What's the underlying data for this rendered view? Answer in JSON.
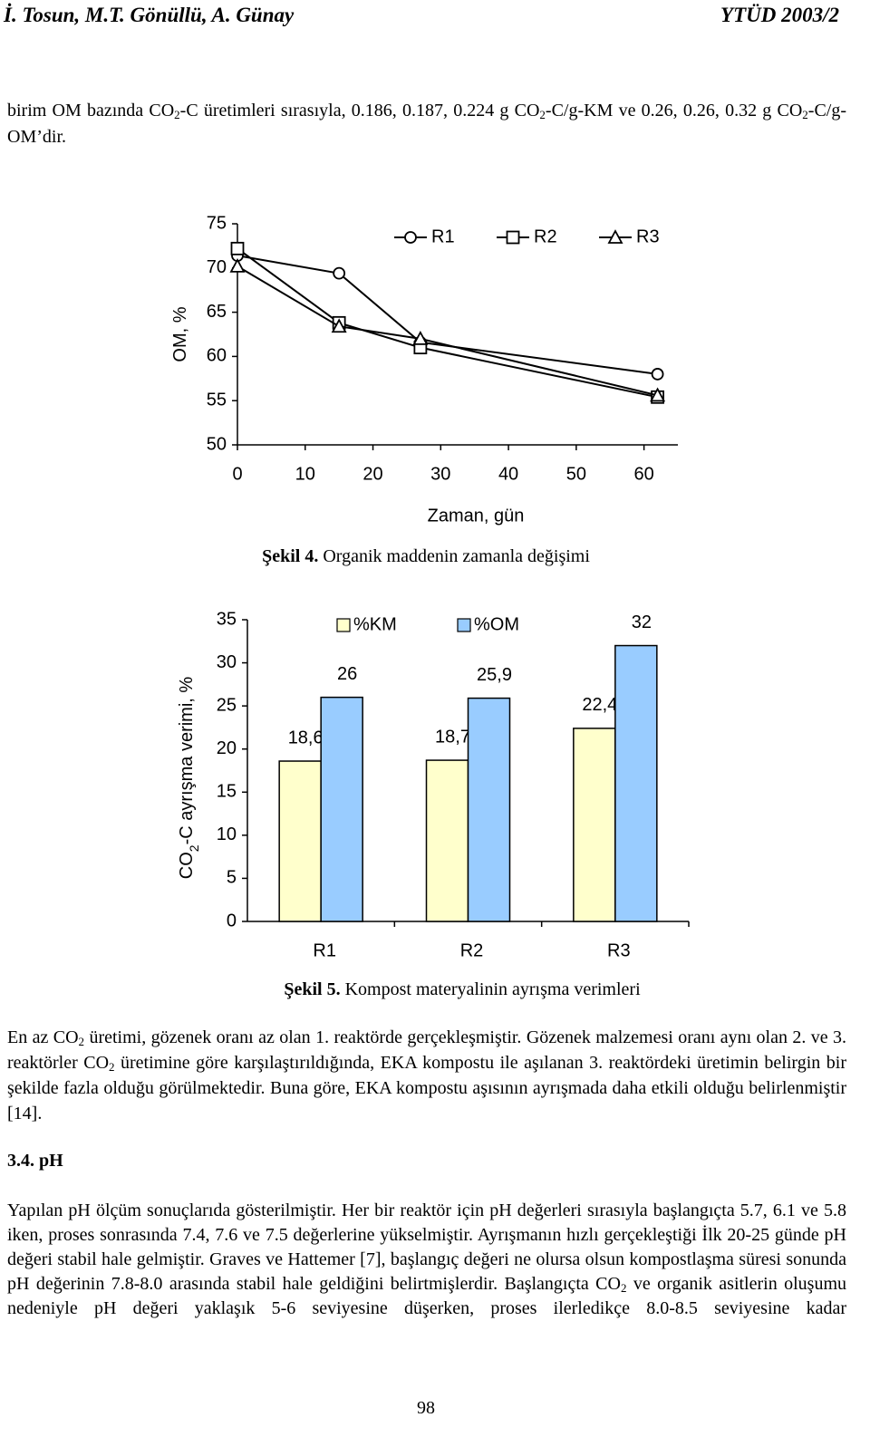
{
  "header": {
    "authors": "İ. Tosun, M.T. Gönüllü, A. Günay",
    "journal": "YTÜD 2003/2"
  },
  "paragraphs": [
    [
      {
        "text": "birim OM bazında CO"
      },
      {
        "text": "2",
        "sub": true
      },
      {
        "text": "-C üretimleri sırasıyla, 0.186, 0.187, 0.224 g CO"
      },
      {
        "text": "2",
        "sub": true
      },
      {
        "text": "-C/g-KM ve 0.26, 0.26, 0.32 g CO"
      },
      {
        "text": "2",
        "sub": true
      },
      {
        "text": "-C/g-OM’dir."
      }
    ],
    [
      {
        "text": "En az CO"
      },
      {
        "text": "2",
        "sub": true
      },
      {
        "text": " üretimi, gözenek oranı az olan 1. reaktörde gerçekleşmiştir. Gözenek malzemesi oranı aynı olan 2. ve 3. reaktörler CO"
      },
      {
        "text": "2",
        "sub": true
      },
      {
        "text": " üretimine göre karşılaştırıldığında, EKA kompostu ile aşılanan 3. reaktördeki üretimin belirgin bir şekilde fazla olduğu görülmektedir. Buna göre, EKA kompostu aşısının ayrışmada daha etkili olduğu belirlenmiştir [14]."
      }
    ],
    [
      {
        "text": "Yapılan pH ölçüm sonuçlarıda gösterilmiştir. Her bir reaktör için pH değerleri sırasıyla başlangıçta 5.7, 6.1 ve 5.8 iken, proses sonrasında 7.4, 7.6 ve 7.5 değerlerine yükselmiştir. Ayrışmanın hızlı gerçekleştiği İlk 20-25 günde pH değeri stabil hale gelmiştir. Graves ve Hattemer [7], başlangıç değeri ne olursa olsun kompostlaşma süresi sonunda pH değerinin 7.8-8.0 arasında stabil hale geldiğini belirtmişlerdir. Başlangıçta CO"
      },
      {
        "text": "2",
        "sub": true
      },
      {
        "text": " ve organik asitlerin oluşumu nedeniyle pH değeri yaklaşık 5-6 seviyesine düşerken, proses ilerledikçe 8.0-8.5 seviyesine kadar"
      }
    ]
  ],
  "section_heading": "3.4. pH",
  "page_number": "98",
  "chart_data": [
    {
      "type": "line",
      "caption": {
        "label": "Şekil 4.",
        "text": "Organik maddenin zamanla değişimi"
      },
      "xlabel": "Zaman, gün",
      "ylabel": [
        {
          "text": "OM, %"
        }
      ],
      "x": [
        0,
        15,
        27,
        62
      ],
      "series": [
        {
          "name": "R1",
          "color": "#000000",
          "marker": "circle",
          "values": [
            71.4,
            69.4,
            61.6,
            58.0
          ]
        },
        {
          "name": "R2",
          "color": "#000000",
          "marker": "square",
          "values": [
            72.2,
            63.8,
            61.0,
            55.4
          ]
        },
        {
          "name": "R3",
          "color": "#000000",
          "marker": "triangle",
          "values": [
            70.2,
            63.4,
            62.0,
            55.6
          ]
        }
      ],
      "xlim": [
        0,
        65
      ],
      "xticks": [
        0,
        10,
        20,
        30,
        40,
        50,
        60
      ],
      "ylim": [
        50,
        75
      ],
      "yticks": [
        50,
        55,
        60,
        65,
        70,
        75
      ],
      "grid": false,
      "legend": "top"
    },
    {
      "type": "bar",
      "caption": {
        "label": "Şekil 5.",
        "text": "Kompost materyalinin ayrışma verimleri"
      },
      "ylabel": [
        {
          "text": "CO"
        },
        {
          "text": "2",
          "sub": true
        },
        {
          "text": "-C ayrışma verimi, %"
        }
      ],
      "categories": [
        "R1",
        "R2",
        "R3"
      ],
      "series": [
        {
          "name": "%KM",
          "color": "#ffffcc",
          "values": [
            18.6,
            18.7,
            22.4
          ],
          "value_labels": [
            "18,6",
            "18,7",
            "22,4"
          ]
        },
        {
          "name": "%OM",
          "color": "#99ccff",
          "values": [
            26,
            25.9,
            32
          ],
          "value_labels": [
            "26",
            "25,9",
            "32"
          ]
        }
      ],
      "ylim": [
        0,
        35
      ],
      "yticks": [
        0,
        5,
        10,
        15,
        20,
        25,
        30,
        35
      ],
      "grid": false,
      "legend": "top"
    }
  ]
}
